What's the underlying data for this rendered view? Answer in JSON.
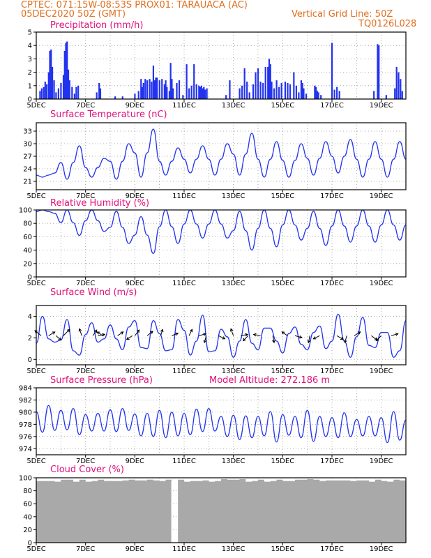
{
  "header": {
    "left_line1": "CPTEC:   071:15W-08:53S   PROX01: TARAUACA (AC)",
    "left_line2": "05DEC2020 50Z (GMT)",
    "right_line2": "Vertical Grid Line: 50Z",
    "right_line3": "TQ0126L028"
  },
  "colors": {
    "series": "#2233ee",
    "title": "#e0107a",
    "header": "#e07020",
    "cloud": "#a9a9a9"
  },
  "chart_data": [
    {
      "type": "bar",
      "title": "Precipitation (mm/h)",
      "x_tick_labels": [
        "5DEC",
        "7DEC",
        "9DEC",
        "11DEC",
        "13DEC",
        "15DEC",
        "17DEC",
        "19DEC"
      ],
      "x_range_days": [
        5,
        20
      ],
      "ylim": [
        0,
        5
      ],
      "y_ticks": [
        0,
        1,
        2,
        3,
        4,
        5
      ],
      "grid": true,
      "events": [
        {
          "day": 5.15,
          "value": 0.6
        },
        {
          "day": 5.22,
          "value": 0.8
        },
        {
          "day": 5.3,
          "value": 0.9
        },
        {
          "day": 5.36,
          "value": 1.3
        },
        {
          "day": 5.42,
          "value": 1.1
        },
        {
          "day": 5.5,
          "value": 2.0
        },
        {
          "day": 5.55,
          "value": 3.6
        },
        {
          "day": 5.6,
          "value": 3.7
        },
        {
          "day": 5.65,
          "value": 2.4
        },
        {
          "day": 5.72,
          "value": 1.4
        },
        {
          "day": 5.8,
          "value": 0.5
        },
        {
          "day": 5.9,
          "value": 0.8
        },
        {
          "day": 6.0,
          "value": 1.2
        },
        {
          "day": 6.1,
          "value": 1.8
        },
        {
          "day": 6.15,
          "value": 3.6
        },
        {
          "day": 6.2,
          "value": 4.2
        },
        {
          "day": 6.25,
          "value": 4.3
        },
        {
          "day": 6.3,
          "value": 2.2
        },
        {
          "day": 6.35,
          "value": 1.4
        },
        {
          "day": 6.45,
          "value": 0.9
        },
        {
          "day": 6.55,
          "value": 0.4
        },
        {
          "day": 6.62,
          "value": 0.9
        },
        {
          "day": 6.7,
          "value": 1.0
        },
        {
          "day": 7.45,
          "value": 0.5
        },
        {
          "day": 7.55,
          "value": 1.2
        },
        {
          "day": 7.6,
          "value": 0.8
        },
        {
          "day": 8.2,
          "value": 0.2
        },
        {
          "day": 8.5,
          "value": 0.2
        },
        {
          "day": 9.0,
          "value": 0.4
        },
        {
          "day": 9.15,
          "value": 0.6
        },
        {
          "day": 9.25,
          "value": 1.5
        },
        {
          "day": 9.3,
          "value": 0.9
        },
        {
          "day": 9.35,
          "value": 1.2
        },
        {
          "day": 9.42,
          "value": 1.5
        },
        {
          "day": 9.5,
          "value": 1.4
        },
        {
          "day": 9.6,
          "value": 1.5
        },
        {
          "day": 9.68,
          "value": 1.3
        },
        {
          "day": 9.75,
          "value": 2.5
        },
        {
          "day": 9.8,
          "value": 1.4
        },
        {
          "day": 9.85,
          "value": 1.6
        },
        {
          "day": 9.9,
          "value": 1.6
        },
        {
          "day": 10.0,
          "value": 1.4
        },
        {
          "day": 10.1,
          "value": 1.5
        },
        {
          "day": 10.2,
          "value": 1.1
        },
        {
          "day": 10.25,
          "value": 1.4
        },
        {
          "day": 10.3,
          "value": 0.9
        },
        {
          "day": 10.4,
          "value": 0.6
        },
        {
          "day": 10.45,
          "value": 2.7
        },
        {
          "day": 10.5,
          "value": 1.5
        },
        {
          "day": 10.55,
          "value": 0.8
        },
        {
          "day": 10.7,
          "value": 1.2
        },
        {
          "day": 10.8,
          "value": 1.4
        },
        {
          "day": 10.95,
          "value": 0.3
        },
        {
          "day": 11.1,
          "value": 2.6
        },
        {
          "day": 11.2,
          "value": 0.8
        },
        {
          "day": 11.3,
          "value": 1.0
        },
        {
          "day": 11.4,
          "value": 2.6
        },
        {
          "day": 11.5,
          "value": 1.1
        },
        {
          "day": 11.6,
          "value": 1.0
        },
        {
          "day": 11.65,
          "value": 0.9
        },
        {
          "day": 11.7,
          "value": 1.0
        },
        {
          "day": 11.75,
          "value": 0.8
        },
        {
          "day": 11.8,
          "value": 0.9
        },
        {
          "day": 11.85,
          "value": 0.7
        },
        {
          "day": 11.92,
          "value": 0.8
        },
        {
          "day": 12.7,
          "value": 0.3
        },
        {
          "day": 12.85,
          "value": 1.4
        },
        {
          "day": 13.25,
          "value": 0.8
        },
        {
          "day": 13.35,
          "value": 1.0
        },
        {
          "day": 13.45,
          "value": 2.3
        },
        {
          "day": 13.55,
          "value": 1.3
        },
        {
          "day": 13.65,
          "value": 0.5
        },
        {
          "day": 13.8,
          "value": 1.1
        },
        {
          "day": 13.9,
          "value": 2.0
        },
        {
          "day": 14.0,
          "value": 2.3
        },
        {
          "day": 14.1,
          "value": 1.3
        },
        {
          "day": 14.2,
          "value": 1.2
        },
        {
          "day": 14.3,
          "value": 2.4
        },
        {
          "day": 14.4,
          "value": 2.4
        },
        {
          "day": 14.45,
          "value": 3.0
        },
        {
          "day": 14.5,
          "value": 2.6
        },
        {
          "day": 14.55,
          "value": 1.3
        },
        {
          "day": 14.65,
          "value": 0.8
        },
        {
          "day": 14.75,
          "value": 1.4
        },
        {
          "day": 14.85,
          "value": 0.9
        },
        {
          "day": 14.95,
          "value": 1.2
        },
        {
          "day": 15.1,
          "value": 1.3
        },
        {
          "day": 15.2,
          "value": 1.2
        },
        {
          "day": 15.3,
          "value": 1.1
        },
        {
          "day": 15.45,
          "value": 2.0
        },
        {
          "day": 15.55,
          "value": 1.0
        },
        {
          "day": 15.65,
          "value": 0.5
        },
        {
          "day": 15.75,
          "value": 1.4
        },
        {
          "day": 15.8,
          "value": 1.2
        },
        {
          "day": 15.85,
          "value": 0.8
        },
        {
          "day": 15.95,
          "value": 0.4
        },
        {
          "day": 16.3,
          "value": 1.0
        },
        {
          "day": 16.35,
          "value": 0.9
        },
        {
          "day": 16.4,
          "value": 0.6
        },
        {
          "day": 16.45,
          "value": 0.5
        },
        {
          "day": 16.55,
          "value": 0.3
        },
        {
          "day": 17.0,
          "value": 4.2
        },
        {
          "day": 17.1,
          "value": 0.7
        },
        {
          "day": 17.2,
          "value": 0.9
        },
        {
          "day": 17.3,
          "value": 0.6
        },
        {
          "day": 18.7,
          "value": 0.6
        },
        {
          "day": 18.85,
          "value": 4.1
        },
        {
          "day": 18.9,
          "value": 4.0
        },
        {
          "day": 19.2,
          "value": 0.3
        },
        {
          "day": 19.55,
          "value": 0.8
        },
        {
          "day": 19.62,
          "value": 2.4
        },
        {
          "day": 19.7,
          "value": 2.0
        },
        {
          "day": 19.78,
          "value": 1.5
        },
        {
          "day": 19.85,
          "value": 0.6
        }
      ]
    },
    {
      "type": "line",
      "title": "Surface Temperature (nC)",
      "x_tick_labels": [
        "5DEC",
        "7DEC",
        "9DEC",
        "11DEC",
        "13DEC",
        "15DEC",
        "17DEC",
        "19DEC"
      ],
      "x_range_days": [
        5,
        20
      ],
      "ylim": [
        19,
        35
      ],
      "y_ticks": [
        21,
        24,
        27,
        30,
        33
      ],
      "grid": true,
      "daily_min": [
        22.0,
        21.5,
        22.0,
        21.5,
        22.0,
        22.5,
        23.0,
        22.5,
        22.5,
        22.0,
        22.0,
        22.5,
        23.0,
        22.0,
        22.0
      ],
      "daily_max": [
        23.0,
        29.5,
        26.5,
        30.0,
        33.5,
        29.0,
        29.5,
        30.0,
        32.5,
        30.5,
        30.0,
        30.5,
        31.0,
        30.5,
        30.5
      ],
      "values": []
    },
    {
      "type": "line",
      "title": "Relative Humidity (%)",
      "x_tick_labels": [
        "5DEC",
        "7DEC",
        "9DEC",
        "11DEC",
        "13DEC",
        "15DEC",
        "17DEC",
        "19DEC"
      ],
      "x_range_days": [
        5,
        20
      ],
      "ylim": [
        0,
        100
      ],
      "y_ticks": [
        0,
        20,
        40,
        60,
        80,
        100
      ],
      "grid": true,
      "daily_min": [
        95,
        62,
        68,
        50,
        35,
        50,
        58,
        58,
        40,
        45,
        55,
        47,
        52,
        52,
        55
      ],
      "daily_max": [
        100,
        100,
        100,
        98,
        90,
        100,
        100,
        100,
        98,
        100,
        100,
        98,
        100,
        100,
        100
      ],
      "values": []
    },
    {
      "type": "line",
      "title": "Surface Wind (m/s)",
      "x_tick_labels": [
        "5DEC",
        "7DEC",
        "9DEC",
        "11DEC",
        "13DEC",
        "15DEC",
        "17DEC",
        "19DEC"
      ],
      "x_range_days": [
        5,
        20
      ],
      "ylim": [
        -0.5,
        5
      ],
      "y_ticks": [
        0,
        2,
        4
      ],
      "grid": true,
      "values": [],
      "wind_vectors": [
        {
          "day": 5.2,
          "u": -1.0,
          "v": 0.8
        },
        {
          "day": 5.5,
          "u": 1.0,
          "v": 0.6
        },
        {
          "day": 5.8,
          "u": 0.8,
          "v": -0.7
        },
        {
          "day": 6.1,
          "u": 1.0,
          "v": 1.0
        },
        {
          "day": 6.85,
          "u": -0.4,
          "v": 1.1
        },
        {
          "day": 7.3,
          "u": 0.6,
          "v": 0.9
        },
        {
          "day": 7.5,
          "u": 1.1,
          "v": 0.2
        },
        {
          "day": 7.7,
          "u": -0.9,
          "v": 0.6
        },
        {
          "day": 8.3,
          "u": 0.9,
          "v": 0.6
        },
        {
          "day": 8.9,
          "u": -0.9,
          "v": -0.6
        },
        {
          "day": 9.0,
          "u": 0.7,
          "v": 0.9
        },
        {
          "day": 9.5,
          "u": 0.9,
          "v": 0.7
        },
        {
          "day": 10.05,
          "u": 0.3,
          "v": 1.0
        },
        {
          "day": 10.5,
          "u": 1.0,
          "v": 0.4
        },
        {
          "day": 11.2,
          "u": 0.5,
          "v": 1.0
        },
        {
          "day": 11.6,
          "u": 1.1,
          "v": 0.3
        },
        {
          "day": 11.9,
          "u": -0.3,
          "v": -1.1
        },
        {
          "day": 12.4,
          "u": 1.0,
          "v": -0.5
        },
        {
          "day": 13.0,
          "u": -0.4,
          "v": 1.1
        },
        {
          "day": 13.3,
          "u": 1.1,
          "v": 0.2
        },
        {
          "day": 13.6,
          "u": -0.8,
          "v": -0.8
        },
        {
          "day": 14.1,
          "u": -1.1,
          "v": 0.2
        },
        {
          "day": 14.6,
          "u": 0.2,
          "v": -1.1
        },
        {
          "day": 15.2,
          "u": -0.9,
          "v": 0.6
        },
        {
          "day": 15.5,
          "u": 1.1,
          "v": -0.3
        },
        {
          "day": 16.1,
          "u": -0.2,
          "v": -1.1
        },
        {
          "day": 16.5,
          "u": -1.0,
          "v": -0.5
        },
        {
          "day": 17.2,
          "u": 1.0,
          "v": -0.6
        },
        {
          "day": 17.6,
          "u": -0.3,
          "v": -1.1
        },
        {
          "day": 17.9,
          "u": 1.0,
          "v": 0.6
        },
        {
          "day": 18.6,
          "u": 0.9,
          "v": -0.7
        },
        {
          "day": 19.0,
          "u": -0.8,
          "v": -0.8
        },
        {
          "day": 19.4,
          "u": 1.1,
          "v": 0.3
        }
      ]
    },
    {
      "type": "line",
      "title": "Surface Pressure (hPa)",
      "annotation": "Model Altitude: 272.186 m",
      "x_tick_labels": [
        "5DEC",
        "7DEC",
        "9DEC",
        "11DEC",
        "13DEC",
        "15DEC",
        "17DEC",
        "19DEC"
      ],
      "x_range_days": [
        5,
        20
      ],
      "ylim": [
        973,
        984
      ],
      "y_ticks": [
        974,
        976,
        978,
        980,
        982,
        984
      ],
      "grid": true,
      "values": []
    },
    {
      "type": "area",
      "title": "Cloud Cover (%)",
      "x_tick_labels": [
        "5DEC",
        "7DEC",
        "9DEC",
        "11DEC",
        "13DEC",
        "15DEC",
        "17DEC",
        "19DEC"
      ],
      "x_range_days": [
        5,
        20
      ],
      "ylim": [
        0,
        100
      ],
      "y_ticks": [
        0,
        20,
        40,
        60,
        80,
        100
      ],
      "grid": true,
      "typical_value": 96,
      "values": []
    }
  ]
}
